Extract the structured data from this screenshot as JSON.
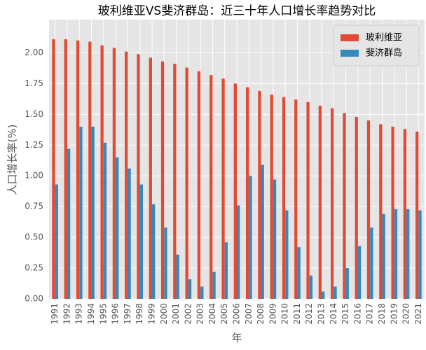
{
  "chart_data": {
    "type": "bar",
    "title": "玻利维亚VS斐济群岛：近三十年人口增长率趋势对比",
    "xlabel": "年",
    "ylabel": "人口增长率(%)",
    "categories": [
      "1991",
      "1992",
      "1993",
      "1994",
      "1995",
      "1996",
      "1997",
      "1998",
      "1999",
      "2000",
      "2001",
      "2002",
      "2003",
      "2004",
      "2005",
      "2006",
      "2007",
      "2008",
      "2009",
      "2010",
      "2011",
      "2012",
      "2013",
      "2014",
      "2015",
      "2016",
      "2017",
      "2018",
      "2019",
      "2020",
      "2021"
    ],
    "series": [
      {
        "name": "玻利维亚",
        "color": "#e24a33",
        "values": [
          2.11,
          2.11,
          2.1,
          2.09,
          2.06,
          2.04,
          2.01,
          1.99,
          1.96,
          1.93,
          1.91,
          1.88,
          1.85,
          1.82,
          1.79,
          1.75,
          1.72,
          1.69,
          1.66,
          1.64,
          1.62,
          1.6,
          1.57,
          1.55,
          1.51,
          1.48,
          1.45,
          1.42,
          1.4,
          1.38,
          1.36
        ]
      },
      {
        "name": "斐济群岛",
        "color": "#348abd",
        "values": [
          0.93,
          1.22,
          1.4,
          1.4,
          1.27,
          1.15,
          1.06,
          0.93,
          0.77,
          0.58,
          0.36,
          0.16,
          0.1,
          0.22,
          0.46,
          0.76,
          1.0,
          1.09,
          0.97,
          0.72,
          0.42,
          0.19,
          0.06,
          0.1,
          0.25,
          0.43,
          0.58,
          0.69,
          0.73,
          0.73,
          0.72
        ]
      }
    ],
    "ylim": [
      0,
      2.27
    ],
    "yticks": [
      {
        "value": 0,
        "label": "0.00"
      },
      {
        "value": 0.25,
        "label": "0.25"
      },
      {
        "value": 0.5,
        "label": "0.50"
      },
      {
        "value": 0.75,
        "label": "0.75"
      },
      {
        "value": 1,
        "label": "1.00"
      },
      {
        "value": 1.25,
        "label": "1.25"
      },
      {
        "value": 1.5,
        "label": "1.50"
      },
      {
        "value": 1.75,
        "label": "1.75"
      },
      {
        "value": 2,
        "label": "2.00"
      }
    ],
    "grid": true,
    "legend": "upper right"
  }
}
